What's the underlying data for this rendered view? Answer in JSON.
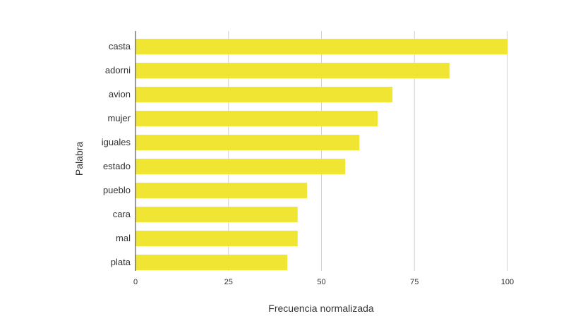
{
  "chart_data": {
    "type": "bar",
    "orientation": "horizontal",
    "categories": [
      "casta",
      "adorni",
      "avion",
      "mujer",
      "iguales",
      "estado",
      "pueblo",
      "cara",
      "mal",
      "plata"
    ],
    "values": [
      100,
      84.4,
      69.1,
      65.1,
      60.2,
      56.4,
      46.1,
      43.6,
      43.6,
      40.8
    ],
    "xlabel": "Frecuencia normalizada",
    "ylabel": "Palabra",
    "xlim": [
      0,
      100
    ],
    "xticks": [
      0,
      25,
      50,
      75,
      100
    ],
    "grid": "vertical",
    "legend": "none",
    "bar_color": "#f0e532"
  }
}
